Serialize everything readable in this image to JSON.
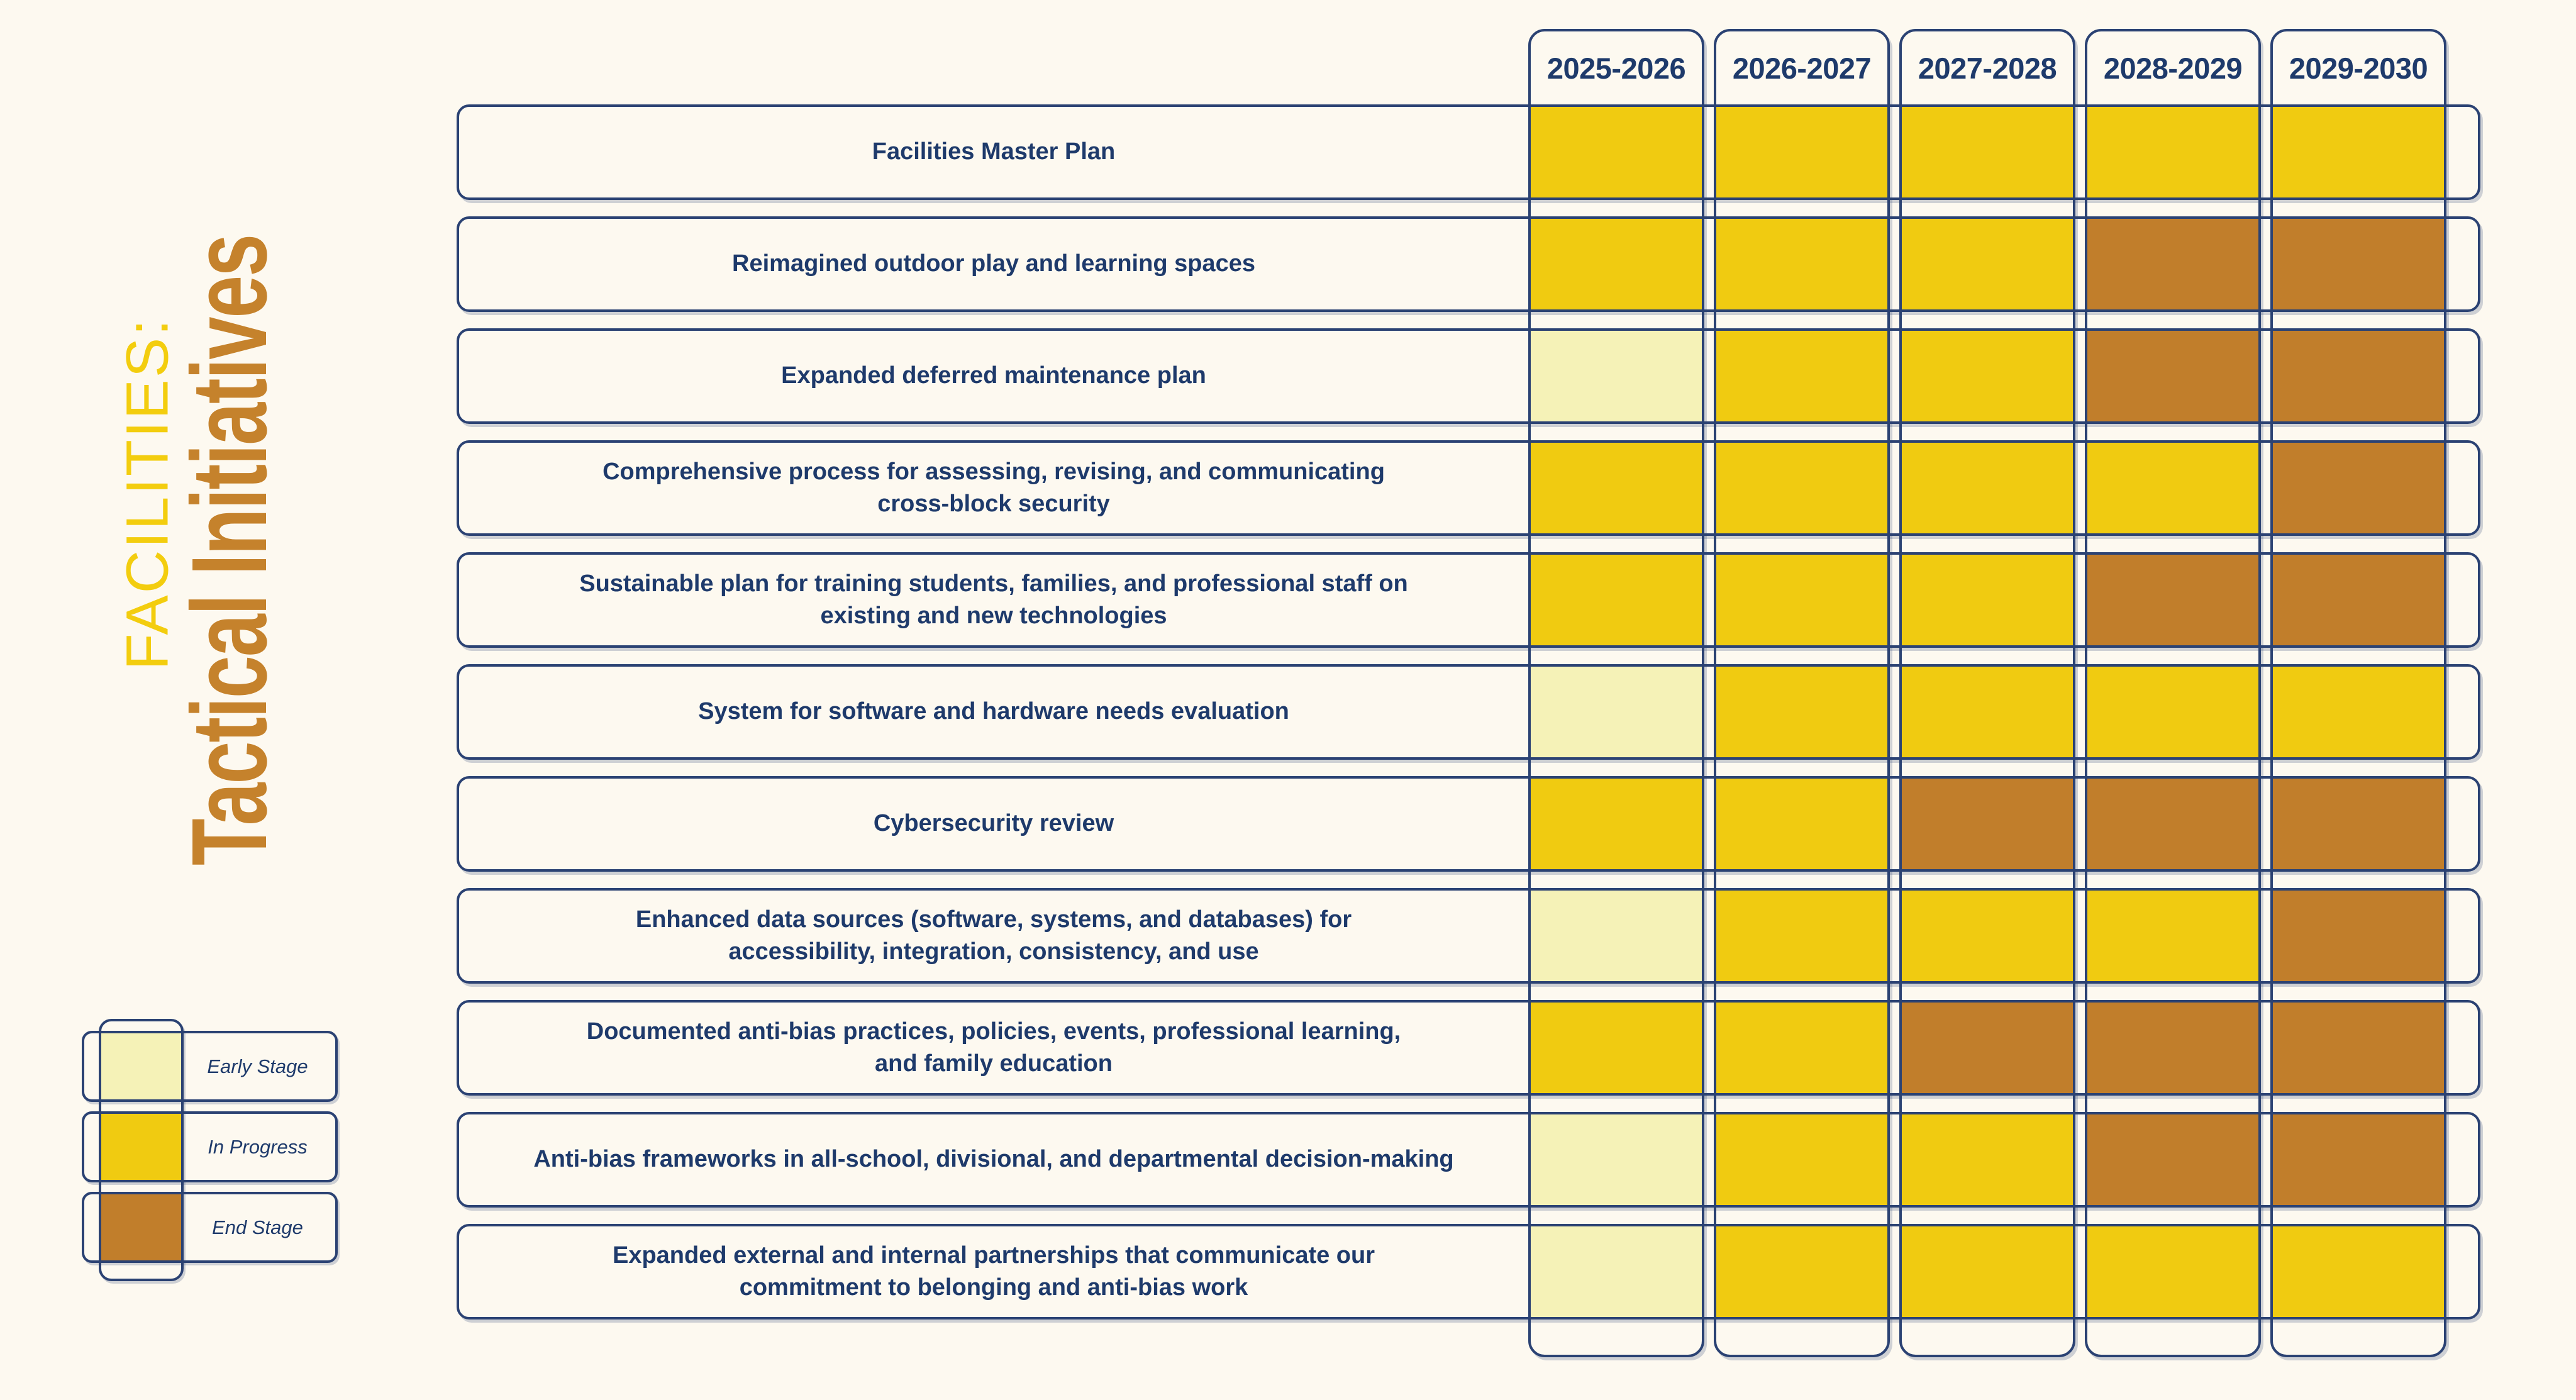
{
  "title": {
    "kicker": "FACILITIES:",
    "main": "Tactical Initiatives"
  },
  "colors": {
    "early": "#F5F2B7",
    "in_progress": "#F0CB11",
    "end": "#C17E2B",
    "navy": "#2B4273",
    "navy_text": "#1E3A6B",
    "background": "#FDF9F0",
    "title_yellow": "#F3CD0E",
    "title_orange": "#C5822C"
  },
  "chart_data": {
    "type": "heatmap",
    "title": "FACILITIES: Tactical Initiatives",
    "x": [
      "2025-2026",
      "2026-2027",
      "2027-2028",
      "2028-2029",
      "2029-2030"
    ],
    "stage_scale": [
      "early",
      "in_progress",
      "end"
    ],
    "legend_items": [
      {
        "id": "early",
        "label": "Early Stage"
      },
      {
        "id": "in_progress",
        "label": "In Progress"
      },
      {
        "id": "end",
        "label": "End Stage"
      }
    ],
    "rows": [
      {
        "label": "Facilities Master Plan",
        "stages": [
          "in_progress",
          "in_progress",
          "in_progress",
          "in_progress",
          "in_progress"
        ]
      },
      {
        "label": "Reimagined outdoor play and learning spaces",
        "stages": [
          "in_progress",
          "in_progress",
          "in_progress",
          "end",
          "end"
        ]
      },
      {
        "label": "Expanded deferred maintenance plan",
        "stages": [
          "early",
          "in_progress",
          "in_progress",
          "end",
          "end"
        ]
      },
      {
        "label": "Comprehensive process for assessing, revising, and communicating\ncross-block security",
        "stages": [
          "in_progress",
          "in_progress",
          "in_progress",
          "in_progress",
          "end"
        ]
      },
      {
        "label": "Sustainable plan for training students, families, and professional staff on\nexisting and new technologies",
        "stages": [
          "in_progress",
          "in_progress",
          "in_progress",
          "end",
          "end"
        ]
      },
      {
        "label": "System for software and hardware needs evaluation",
        "stages": [
          "early",
          "in_progress",
          "in_progress",
          "in_progress",
          "in_progress"
        ]
      },
      {
        "label": "Cybersecurity review",
        "stages": [
          "in_progress",
          "in_progress",
          "end",
          "end",
          "end"
        ]
      },
      {
        "label": "Enhanced data sources (software, systems, and databases) for\naccessibility, integration, consistency, and use",
        "stages": [
          "early",
          "in_progress",
          "in_progress",
          "in_progress",
          "end"
        ]
      },
      {
        "label": "Documented anti-bias practices, policies, events, professional learning,\nand family education",
        "stages": [
          "in_progress",
          "in_progress",
          "end",
          "end",
          "end"
        ]
      },
      {
        "label": "Anti-bias frameworks in all-school, divisional, and departmental decision-making",
        "stages": [
          "early",
          "in_progress",
          "in_progress",
          "end",
          "end"
        ]
      },
      {
        "label": "Expanded external and internal partnerships that communicate our\ncommitment to belonging and anti-bias work",
        "stages": [
          "early",
          "in_progress",
          "in_progress",
          "in_progress",
          "in_progress"
        ]
      }
    ]
  }
}
